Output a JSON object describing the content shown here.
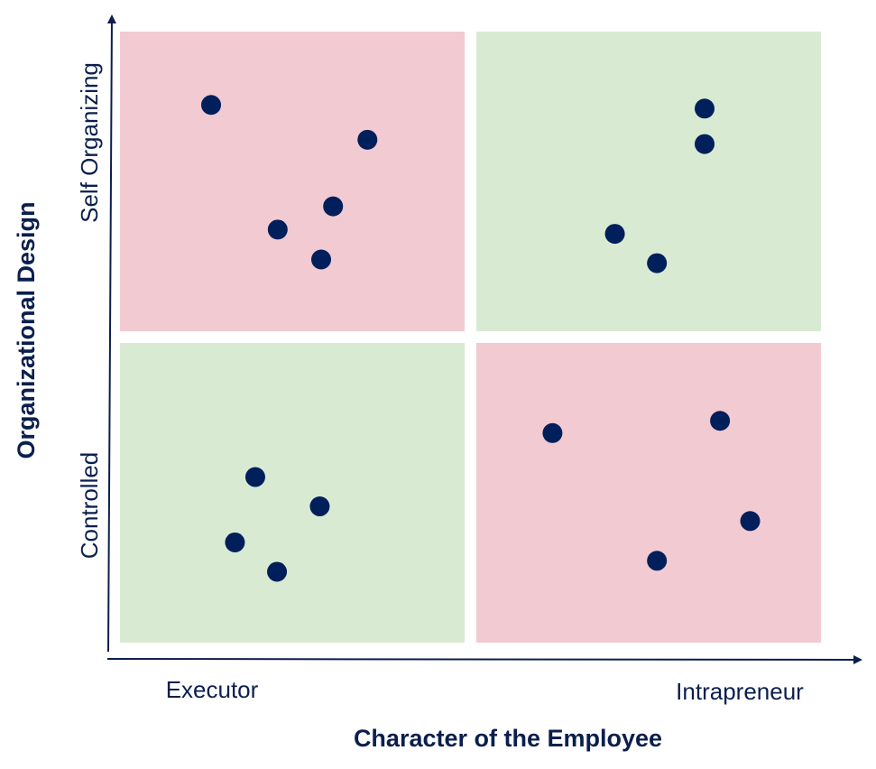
{
  "chart_data": {
    "type": "scatter",
    "title": "",
    "xlabel": "Character of the Employee",
    "ylabel": "Organizational Design",
    "x_categories": [
      "Executor",
      "Intrapreneur"
    ],
    "y_categories": [
      "Controlled",
      "Self Organizing"
    ],
    "xlim": [
      0,
      100
    ],
    "ylim": [
      0,
      100
    ],
    "grid": false,
    "colors": {
      "misfit": "#f2cad2",
      "fit": "#d9ead3",
      "points": "#001f5b",
      "axis": "#0b1f4d"
    },
    "quadrants": [
      {
        "x_category": "Executor",
        "y_category": "Self Organizing",
        "fit": false
      },
      {
        "x_category": "Intrapreneur",
        "y_category": "Self Organizing",
        "fit": true
      },
      {
        "x_category": "Executor",
        "y_category": "Controlled",
        "fit": true
      },
      {
        "x_category": "Intrapreneur",
        "y_category": "Controlled",
        "fit": false
      }
    ],
    "points": [
      {
        "x": 13.0,
        "y": 88.0
      },
      {
        "x": 35.3,
        "y": 82.3
      },
      {
        "x": 30.4,
        "y": 71.4
      },
      {
        "x": 22.5,
        "y": 67.6
      },
      {
        "x": 28.7,
        "y": 62.7
      },
      {
        "x": 83.4,
        "y": 87.4
      },
      {
        "x": 83.4,
        "y": 81.6
      },
      {
        "x": 70.6,
        "y": 66.9
      },
      {
        "x": 76.6,
        "y": 62.1
      },
      {
        "x": 61.7,
        "y": 34.3
      },
      {
        "x": 85.6,
        "y": 36.3
      },
      {
        "x": 89.9,
        "y": 19.9
      },
      {
        "x": 76.6,
        "y": 13.4
      },
      {
        "x": 19.3,
        "y": 27.1
      },
      {
        "x": 28.5,
        "y": 22.3
      },
      {
        "x": 16.4,
        "y": 16.4
      },
      {
        "x": 22.4,
        "y": 11.6
      }
    ]
  }
}
